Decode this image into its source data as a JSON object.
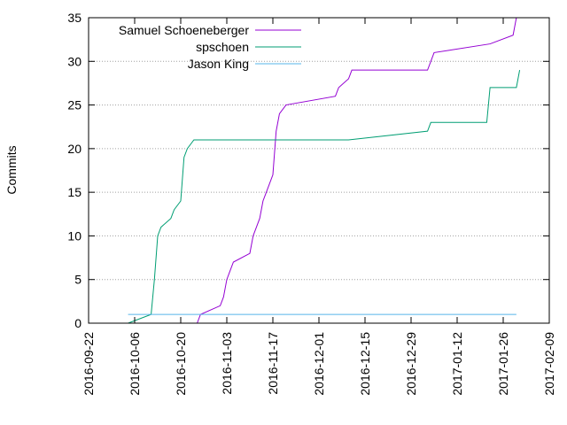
{
  "chart_data": {
    "type": "line",
    "title": "",
    "xlabel": "",
    "ylabel": "Commits",
    "grid": true,
    "legend_position": "top-left",
    "x_type": "date",
    "xlim": [
      "2016-09-22",
      "2017-02-09"
    ],
    "ylim": [
      0,
      35
    ],
    "x_ticks": [
      "2016-09-22",
      "2016-10-06",
      "2016-10-20",
      "2016-11-03",
      "2016-11-17",
      "2016-12-01",
      "2016-12-15",
      "2016-12-29",
      "2017-01-12",
      "2017-01-26",
      "2017-02-09"
    ],
    "y_ticks": [
      0,
      5,
      10,
      15,
      20,
      25,
      30,
      35
    ],
    "series": [
      {
        "name": "Samuel Schoeneberger",
        "color": "#9400d3",
        "points": [
          [
            "2016-10-25",
            0
          ],
          [
            "2016-10-26",
            1
          ],
          [
            "2016-11-01",
            2
          ],
          [
            "2016-11-02",
            3
          ],
          [
            "2016-11-03",
            5
          ],
          [
            "2016-11-04",
            6
          ],
          [
            "2016-11-05",
            7
          ],
          [
            "2016-11-10",
            8
          ],
          [
            "2016-11-11",
            10
          ],
          [
            "2016-11-12",
            11
          ],
          [
            "2016-11-13",
            12
          ],
          [
            "2016-11-14",
            14
          ],
          [
            "2016-11-15",
            15
          ],
          [
            "2016-11-16",
            16
          ],
          [
            "2016-11-17",
            17
          ],
          [
            "2016-11-18",
            22
          ],
          [
            "2016-11-19",
            24
          ],
          [
            "2016-11-21",
            25
          ],
          [
            "2016-12-06",
            26
          ],
          [
            "2016-12-07",
            27
          ],
          [
            "2016-12-10",
            28
          ],
          [
            "2016-12-11",
            29
          ],
          [
            "2017-01-03",
            29
          ],
          [
            "2017-01-04",
            30
          ],
          [
            "2017-01-05",
            31
          ],
          [
            "2017-01-22",
            32
          ],
          [
            "2017-01-29",
            33
          ],
          [
            "2017-01-30",
            35
          ]
        ]
      },
      {
        "name": "spschoen",
        "color": "#009e73",
        "points": [
          [
            "2016-10-04",
            0
          ],
          [
            "2016-10-11",
            1
          ],
          [
            "2016-10-12",
            5
          ],
          [
            "2016-10-13",
            10
          ],
          [
            "2016-10-14",
            11
          ],
          [
            "2016-10-17",
            12
          ],
          [
            "2016-10-18",
            13
          ],
          [
            "2016-10-20",
            14
          ],
          [
            "2016-10-21",
            19
          ],
          [
            "2016-10-22",
            20
          ],
          [
            "2016-10-24",
            21
          ],
          [
            "2016-12-10",
            21
          ],
          [
            "2017-01-03",
            22
          ],
          [
            "2017-01-04",
            23
          ],
          [
            "2017-01-21",
            23
          ],
          [
            "2017-01-22",
            27
          ],
          [
            "2017-01-30",
            27
          ],
          [
            "2017-01-31",
            29
          ]
        ]
      },
      {
        "name": "Jason King",
        "color": "#56b4e9",
        "points": [
          [
            "2016-10-04",
            1
          ],
          [
            "2017-01-30",
            1
          ]
        ]
      }
    ]
  }
}
